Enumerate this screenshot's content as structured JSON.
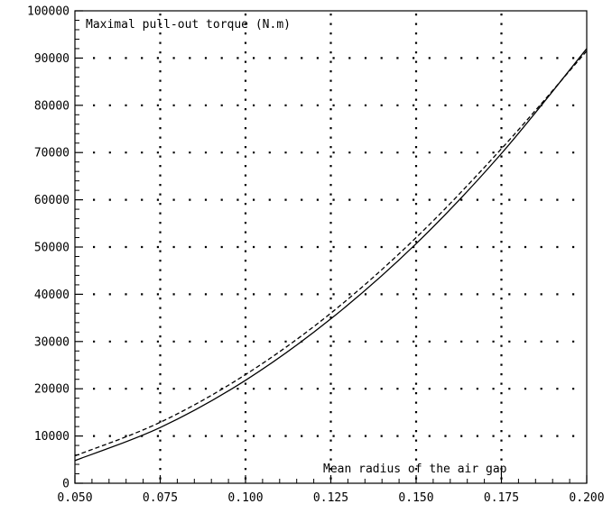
{
  "chart_data": {
    "type": "line",
    "title": "",
    "xlabel": "",
    "ylabel": "",
    "annotations": {
      "y_quantity": "Maximal pull-out torque (N.m)",
      "x_quantity": "Mean radius of the air gap"
    },
    "xlim": [
      0.05,
      0.2
    ],
    "ylim": [
      0,
      100000
    ],
    "x_ticks": [
      0.05,
      0.075,
      0.1,
      0.125,
      0.15,
      0.175,
      0.2
    ],
    "x_tick_labels": [
      "0.050",
      "0.075",
      "0.100",
      "0.125",
      "0.150",
      "0.175",
      "0.200"
    ],
    "y_ticks": [
      0,
      10000,
      20000,
      30000,
      40000,
      50000,
      60000,
      70000,
      80000,
      90000,
      100000
    ],
    "y_tick_labels": [
      "0",
      "10000",
      "20000",
      "30000",
      "40000",
      "50000",
      "60000",
      "70000",
      "80000",
      "90000",
      "100000"
    ],
    "grid": true,
    "series": [
      {
        "style": "solid",
        "color": "#000000",
        "x": [
          0.05,
          0.075,
          0.1,
          0.125,
          0.15,
          0.175,
          0.2
        ],
        "y": [
          4800,
          11800,
          21800,
          34800,
          50700,
          69800,
          92000
        ]
      },
      {
        "style": "dashed",
        "color": "#000000",
        "x": [
          0.05,
          0.075,
          0.1,
          0.125,
          0.15,
          0.175,
          0.2
        ],
        "y": [
          5800,
          12900,
          23000,
          36000,
          52000,
          70800,
          91500
        ]
      }
    ]
  }
}
